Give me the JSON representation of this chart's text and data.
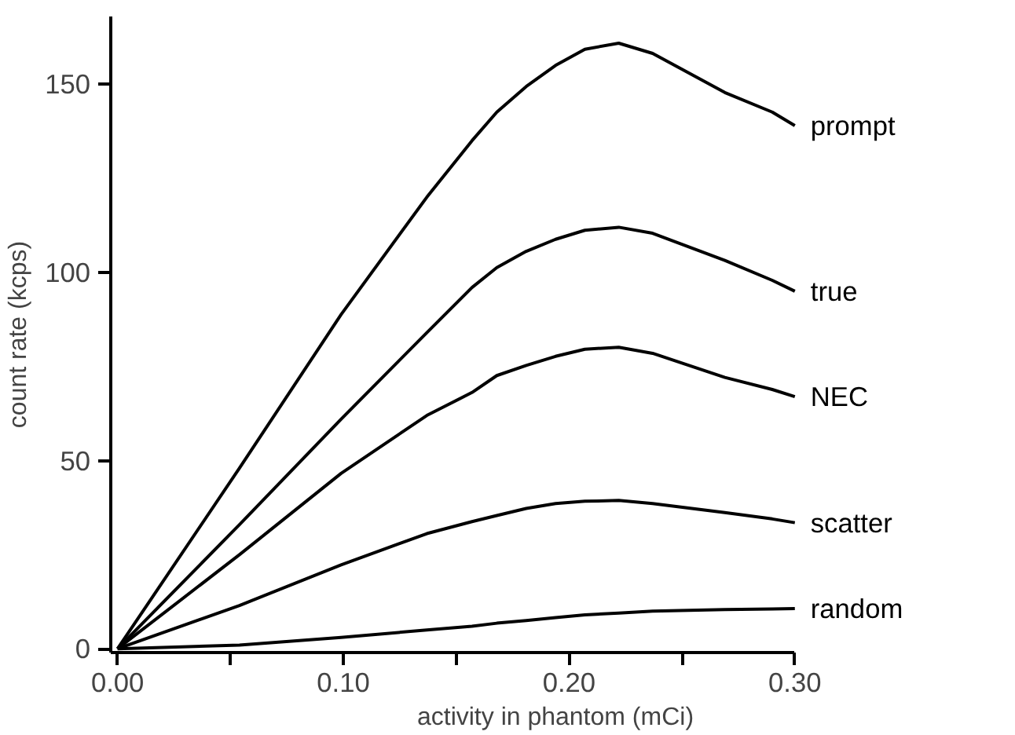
{
  "chart_data": {
    "type": "line",
    "xlabel": "activity in phantom (mCi)",
    "ylabel": "count rate (kcps)",
    "x": [
      0,
      0.054,
      0.099,
      0.137,
      0.157,
      0.168,
      0.181,
      0.194,
      0.207,
      0.222,
      0.237,
      0.269,
      0.29,
      0.3
    ],
    "series": [
      {
        "name": "prompt",
        "color": "#000000",
        "values": [
          0,
          48,
          88.8,
          120,
          135,
          142.6,
          149.4,
          155,
          159.3,
          160.9,
          158.2,
          147.8,
          142.6,
          139
        ]
      },
      {
        "name": "true",
        "color": "#000000",
        "values": [
          0,
          33,
          61,
          84,
          96,
          101.3,
          105.6,
          108.8,
          111.2,
          112,
          110.4,
          103.2,
          97.9,
          95
        ]
      },
      {
        "name": "NEC",
        "color": "#000000",
        "values": [
          0,
          25,
          46.6,
          62,
          68.1,
          72.6,
          75.3,
          77.7,
          79.6,
          80.1,
          78.5,
          72.1,
          68.9,
          67
        ]
      },
      {
        "name": "scatter",
        "color": "#000000",
        "values": [
          0,
          11.5,
          22.3,
          30.6,
          33.8,
          35.4,
          37.3,
          38.6,
          39.2,
          39.4,
          38.6,
          36.2,
          34.5,
          33.5
        ]
      },
      {
        "name": "random",
        "color": "#000000",
        "values": [
          0,
          1,
          3,
          5,
          6,
          6.8,
          7.5,
          8.3,
          9,
          9.5,
          10,
          10.4,
          10.6,
          10.7
        ]
      }
    ],
    "xlim": [
      -0.003,
      0.3
    ],
    "ylim": [
      -1,
      168
    ],
    "xticks": [
      {
        "value": 0,
        "label": "0.00"
      },
      {
        "value": 0.05,
        "label": null
      },
      {
        "value": 0.1,
        "label": "0.10"
      },
      {
        "value": 0.15,
        "label": null
      },
      {
        "value": 0.2,
        "label": "0.20"
      },
      {
        "value": 0.25,
        "label": null
      },
      {
        "value": 0.3,
        "label": "0.30"
      }
    ],
    "yticks": [
      0,
      50,
      100,
      150
    ],
    "grid": false,
    "marker": "none",
    "line_style": "solid"
  }
}
